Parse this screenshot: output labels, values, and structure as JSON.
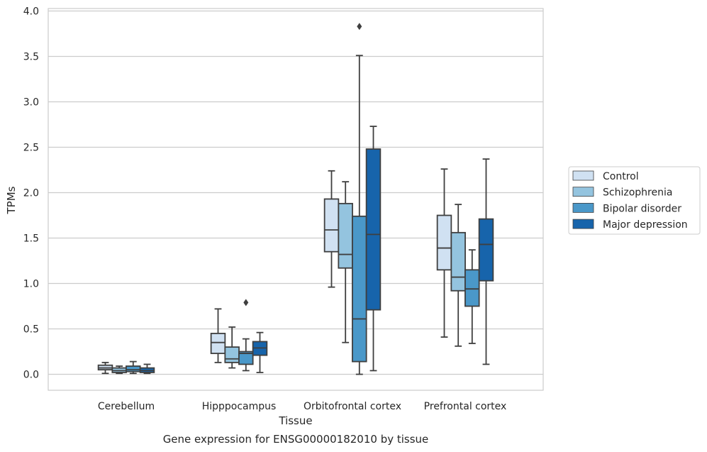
{
  "chart_data": {
    "type": "box",
    "title": "",
    "caption": "Gene expression for ENSG00000182010 by tissue",
    "xlabel": "Tissue",
    "ylabel": "TPMs",
    "ylim": [
      -0.18,
      4.04
    ],
    "yticks": [
      "0.0",
      "0.5",
      "1.0",
      "1.5",
      "2.0",
      "2.5",
      "3.0",
      "3.5",
      "4.0"
    ],
    "grid": "horizontal",
    "legend_position": "right",
    "categories": [
      "Cerebellum",
      "Hipppocampus",
      "Orbitofrontal cortex",
      "Prefrontal cortex"
    ],
    "series": [
      {
        "name": "Control",
        "color": "#d0e1f2",
        "boxes": [
          {
            "whislo": 0.01,
            "q1": 0.05,
            "med": 0.07,
            "q3": 0.1,
            "whishi": 0.13,
            "fliers": []
          },
          {
            "whislo": 0.13,
            "q1": 0.23,
            "med": 0.35,
            "q3": 0.45,
            "whishi": 0.72,
            "fliers": []
          },
          {
            "whislo": 0.96,
            "q1": 1.35,
            "med": 1.59,
            "q3": 1.93,
            "whishi": 2.24,
            "fliers": []
          },
          {
            "whislo": 0.41,
            "q1": 1.15,
            "med": 1.39,
            "q3": 1.75,
            "whishi": 2.26,
            "fliers": []
          }
        ]
      },
      {
        "name": "Schizophrenia",
        "color": "#94c4df",
        "boxes": [
          {
            "whislo": 0.01,
            "q1": 0.02,
            "med": 0.04,
            "q3": 0.07,
            "whishi": 0.09,
            "fliers": []
          },
          {
            "whislo": 0.07,
            "q1": 0.13,
            "med": 0.17,
            "q3": 0.3,
            "whishi": 0.52,
            "fliers": []
          },
          {
            "whislo": 0.35,
            "q1": 1.17,
            "med": 1.32,
            "q3": 1.88,
            "whishi": 2.12,
            "fliers": []
          },
          {
            "whislo": 0.31,
            "q1": 0.92,
            "med": 1.07,
            "q3": 1.56,
            "whishi": 1.87,
            "fliers": []
          }
        ]
      },
      {
        "name": "Bipolar disorder",
        "color": "#4a98c9",
        "boxes": [
          {
            "whislo": 0.01,
            "q1": 0.03,
            "med": 0.05,
            "q3": 0.09,
            "whishi": 0.14,
            "fliers": []
          },
          {
            "whislo": 0.04,
            "q1": 0.11,
            "med": 0.23,
            "q3": 0.25,
            "whishi": 0.39,
            "fliers": [
              0.79
            ]
          },
          {
            "whislo": 0.0,
            "q1": 0.14,
            "med": 0.61,
            "q3": 1.74,
            "whishi": 3.51,
            "fliers": [
              3.83
            ]
          },
          {
            "whislo": 0.34,
            "q1": 0.75,
            "med": 0.94,
            "q3": 1.15,
            "whishi": 1.37,
            "fliers": []
          }
        ]
      },
      {
        "name": "Major depression",
        "color": "#1764ab",
        "boxes": [
          {
            "whislo": 0.01,
            "q1": 0.02,
            "med": 0.04,
            "q3": 0.07,
            "whishi": 0.11,
            "fliers": []
          },
          {
            "whislo": 0.02,
            "q1": 0.21,
            "med": 0.29,
            "q3": 0.36,
            "whishi": 0.46,
            "fliers": []
          },
          {
            "whislo": 0.04,
            "q1": 0.71,
            "med": 1.54,
            "q3": 2.48,
            "whishi": 2.73,
            "fliers": []
          },
          {
            "whislo": 0.11,
            "q1": 1.03,
            "med": 1.43,
            "q3": 1.71,
            "whishi": 2.37,
            "fliers": []
          }
        ]
      }
    ]
  }
}
